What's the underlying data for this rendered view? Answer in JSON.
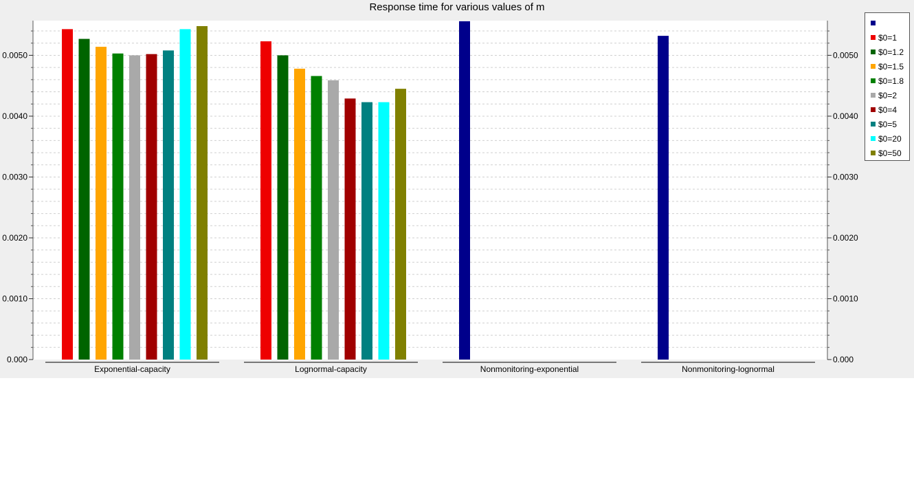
{
  "chart_data": {
    "type": "bar",
    "title": "Response time for various values of m",
    "xlabel": "",
    "ylabel": "",
    "ylim": [
      0,
      0.00557
    ],
    "y_ticks": [
      0.0,
      0.001,
      0.002,
      0.003,
      0.004,
      0.005
    ],
    "y_tick_labels": [
      "0.000",
      "0.0010",
      "0.0020",
      "0.0030",
      "0.0040",
      "0.0050"
    ],
    "grid": true,
    "legend_position": "top-right, outside plot",
    "categories": [
      "Exponential-capacity",
      "Lognormal-capacity",
      "Nonmonitoring-exponential",
      "Nonmonitoring-lognormal"
    ],
    "series": [
      {
        "name": "",
        "color": "#00008b",
        "values": [
          null,
          null,
          0.00556,
          0.00532
        ]
      },
      {
        "name": "$0=1",
        "color": "#ee0000",
        "values": [
          0.00543,
          0.00523,
          null,
          null
        ]
      },
      {
        "name": "$0=1.2",
        "color": "#006400",
        "values": [
          0.00527,
          0.005,
          null,
          null
        ]
      },
      {
        "name": "$0=1.5",
        "color": "#ffa500",
        "values": [
          0.00514,
          0.00478,
          null,
          null
        ]
      },
      {
        "name": "$0=1.8",
        "color": "#008000",
        "values": [
          0.00503,
          0.00466,
          null,
          null
        ]
      },
      {
        "name": "$0=2",
        "color": "#a9a9a9",
        "values": [
          0.005,
          0.00459,
          null,
          null
        ]
      },
      {
        "name": "$0=4",
        "color": "#a00000",
        "values": [
          0.00502,
          0.00429,
          null,
          null
        ]
      },
      {
        "name": "$0=5",
        "color": "#008080",
        "values": [
          0.00508,
          0.00423,
          null,
          null
        ]
      },
      {
        "name": "$0=20",
        "color": "#00ffff",
        "values": [
          0.00543,
          0.00423,
          null,
          null
        ]
      },
      {
        "name": "$0=50",
        "color": "#808000",
        "values": [
          0.00548,
          0.00445,
          null,
          null
        ]
      }
    ]
  }
}
